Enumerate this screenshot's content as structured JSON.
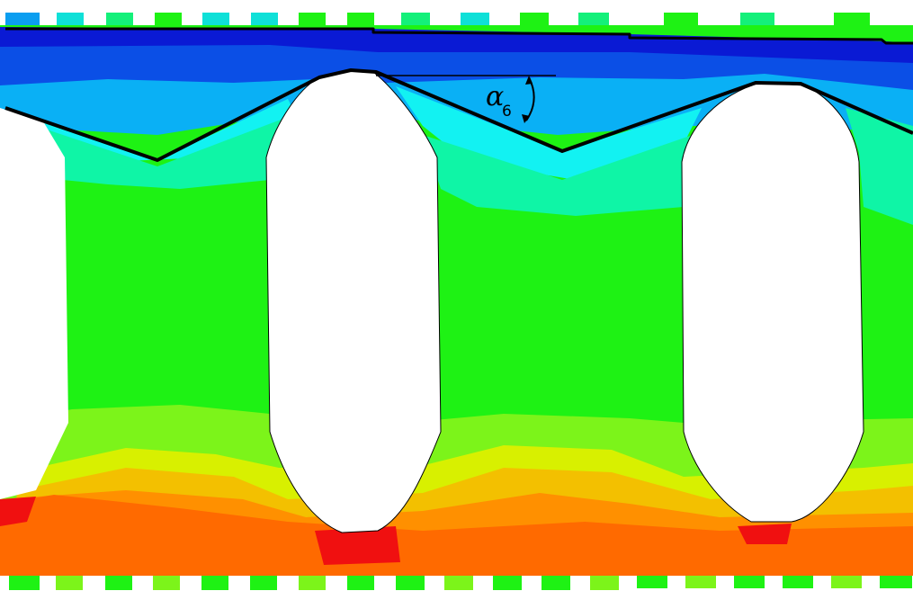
{
  "figure": {
    "angle_label": {
      "symbol": "α",
      "subscript": "6"
    }
  },
  "colors": {
    "band_dark_blue": "#0a1ad4",
    "band_blue": "#0b4fe6",
    "band_sky": "#0ab0f5",
    "band_cyan": "#12f2f2",
    "band_aqua": "#0ff5a6",
    "band_green": "#1ef214",
    "band_lime": "#7cf41a",
    "band_yellow": "#d8f000",
    "band_orange_light": "#f3c000",
    "band_orange": "#ff9000",
    "band_red_orange": "#ff6a00",
    "band_red": "#f01010",
    "hole": "#ffffff",
    "outline": "#000000"
  }
}
